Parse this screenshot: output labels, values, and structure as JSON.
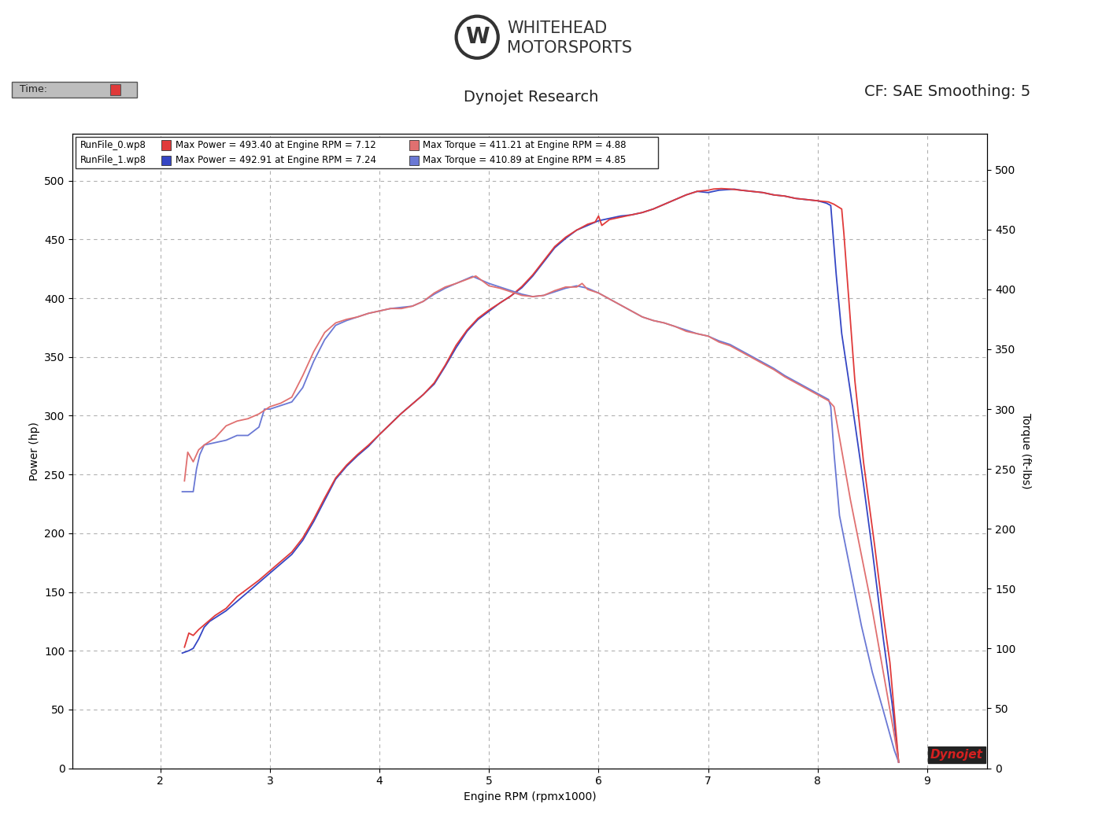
{
  "chart_data": {
    "type": "line",
    "header": {
      "logo": [
        "WHITEHEAD",
        "MOTORSPORTS"
      ],
      "time_label": "Time:",
      "title": "Dynojet Research",
      "settings": "CF: SAE Smoothing: 5"
    },
    "badge": "Dynojet",
    "x_label": "Engine RPM (rpmx1000)",
    "y_label": "Power (hp)",
    "y2_label": "Torque (ft-lbs)",
    "xlim": [
      1.2,
      9.55
    ],
    "xticks": [
      2,
      3,
      4,
      5,
      6,
      7,
      8,
      9
    ],
    "ylim": [
      0,
      540
    ],
    "yticks": [
      0,
      50,
      100,
      150,
      200,
      250,
      300,
      350,
      400,
      450,
      500
    ],
    "y2lim": [
      0,
      530
    ],
    "y2ticks": [
      0,
      50,
      100,
      150,
      200,
      250,
      300,
      350,
      400,
      450,
      500
    ],
    "grid": true,
    "runs": [
      {
        "name": "RunFile_1.wp8",
        "color": "#3546c4",
        "max_power": "Max Power = 492.91 at Engine RPM = 7.24",
        "max_torque": "Max Torque = 410.89 at Engine RPM = 4.85",
        "power": {
          "color": "#3546c4",
          "x": [
            2.2,
            2.26,
            2.3,
            2.35,
            2.4,
            2.45,
            2.5,
            2.6,
            2.7,
            2.8,
            2.9,
            3.0,
            3.1,
            3.2,
            3.3,
            3.4,
            3.5,
            3.6,
            3.7,
            3.8,
            3.9,
            4.0,
            4.1,
            4.2,
            4.3,
            4.4,
            4.5,
            4.6,
            4.7,
            4.8,
            4.9,
            5.0,
            5.1,
            5.2,
            5.3,
            5.4,
            5.5,
            5.6,
            5.7,
            5.8,
            5.9,
            6.0,
            6.1,
            6.2,
            6.3,
            6.4,
            6.5,
            6.6,
            6.7,
            6.8,
            6.9,
            7.0,
            7.1,
            7.24,
            7.3,
            7.4,
            7.5,
            7.6,
            7.7,
            7.8,
            7.9,
            8.0,
            8.08,
            8.12,
            8.17,
            8.22,
            8.3,
            8.4,
            8.5,
            8.6,
            8.68,
            8.74
          ],
          "values": [
            98,
            100,
            102,
            110,
            120,
            125,
            128,
            134,
            142,
            150,
            158,
            166,
            174,
            182,
            194,
            210,
            228,
            246,
            257,
            266,
            274,
            284,
            293,
            302,
            310,
            318,
            327,
            342,
            358,
            372,
            382,
            389,
            396,
            402,
            409,
            419,
            431,
            443,
            451,
            458,
            462,
            466,
            468,
            470,
            471,
            473,
            476,
            480,
            484,
            488,
            491,
            490,
            492,
            492.91,
            492,
            491,
            490,
            488,
            487,
            485,
            484,
            483,
            481,
            479,
            420,
            370,
            320,
            255,
            185,
            110,
            55,
            5
          ]
        },
        "torque": {
          "color": "#6a78d4",
          "axis": "y2",
          "x": [
            2.2,
            2.3,
            2.33,
            2.36,
            2.4,
            2.5,
            2.6,
            2.7,
            2.8,
            2.9,
            2.95,
            3.0,
            3.1,
            3.2,
            3.3,
            3.4,
            3.5,
            3.6,
            3.7,
            3.8,
            3.9,
            4.0,
            4.1,
            4.2,
            4.3,
            4.4,
            4.5,
            4.6,
            4.7,
            4.85,
            5.0,
            5.1,
            5.2,
            5.3,
            5.4,
            5.5,
            5.6,
            5.7,
            5.8,
            5.9,
            6.0,
            6.1,
            6.2,
            6.3,
            6.4,
            6.5,
            6.6,
            6.7,
            6.8,
            6.9,
            7.0,
            7.1,
            7.2,
            7.3,
            7.4,
            7.5,
            7.6,
            7.7,
            7.8,
            7.9,
            8.0,
            8.1,
            8.12,
            8.15,
            8.2,
            8.3,
            8.4,
            8.5,
            8.6,
            8.7,
            8.74
          ],
          "values": [
            231,
            231,
            250,
            262,
            270,
            272,
            274,
            278,
            278,
            285,
            300,
            300,
            303,
            306,
            318,
            340,
            358,
            370,
            374,
            377,
            380,
            382,
            384,
            385,
            386,
            390,
            396,
            401,
            405,
            410.89,
            405,
            402,
            399,
            396,
            394,
            395,
            398,
            401,
            403,
            401,
            397,
            392,
            387,
            382,
            377,
            374,
            372,
            369,
            366,
            363,
            361,
            357,
            354,
            349,
            344,
            339,
            334,
            328,
            323,
            318,
            313,
            308,
            302,
            263,
            211,
            165,
            119,
            80,
            48,
            15,
            5
          ]
        }
      },
      {
        "name": "RunFile_0.wp8",
        "color": "#e03a3a",
        "max_power": "Max Power = 493.40 at Engine RPM = 7.12",
        "max_torque": "Max Torque = 411.21 at Engine RPM = 4.88",
        "power": {
          "color": "#e03a3a",
          "x": [
            2.22,
            2.26,
            2.3,
            2.35,
            2.4,
            2.45,
            2.5,
            2.6,
            2.7,
            2.8,
            2.9,
            3.0,
            3.1,
            3.2,
            3.3,
            3.4,
            3.5,
            3.6,
            3.7,
            3.8,
            3.9,
            4.0,
            4.1,
            4.2,
            4.3,
            4.4,
            4.5,
            4.6,
            4.7,
            4.8,
            4.9,
            5.0,
            5.1,
            5.2,
            5.3,
            5.4,
            5.5,
            5.6,
            5.7,
            5.8,
            5.9,
            5.97,
            6.0,
            6.03,
            6.1,
            6.2,
            6.3,
            6.4,
            6.5,
            6.6,
            6.7,
            6.8,
            6.9,
            7.0,
            7.05,
            7.12,
            7.2,
            7.3,
            7.4,
            7.5,
            7.6,
            7.7,
            7.8,
            7.9,
            8.0,
            8.1,
            8.15,
            8.22,
            8.24,
            8.3,
            8.34,
            8.42,
            8.52,
            8.6,
            8.66,
            8.74
          ],
          "values": [
            103,
            115,
            113,
            118,
            122,
            126,
            130,
            136,
            146,
            153,
            160,
            168,
            176,
            184,
            196,
            212,
            230,
            247,
            258,
            267,
            275,
            284,
            293,
            302,
            310,
            318,
            328,
            343,
            360,
            373,
            383,
            390,
            396,
            402,
            410,
            420,
            432,
            444,
            452,
            458,
            463,
            465,
            470,
            462,
            467,
            469,
            471,
            473,
            476,
            480,
            484,
            488,
            491,
            492,
            493,
            493.4,
            493,
            492,
            491,
            490,
            488,
            487,
            485,
            484,
            483,
            482,
            480,
            476,
            455,
            380,
            330,
            260,
            190,
            130,
            90,
            5
          ]
        },
        "torque": {
          "color": "#e07070",
          "axis": "y2",
          "x": [
            2.22,
            2.25,
            2.3,
            2.35,
            2.4,
            2.5,
            2.6,
            2.7,
            2.8,
            2.9,
            3.0,
            3.1,
            3.2,
            3.3,
            3.4,
            3.5,
            3.6,
            3.7,
            3.8,
            3.9,
            4.0,
            4.1,
            4.2,
            4.3,
            4.4,
            4.5,
            4.6,
            4.7,
            4.88,
            5.0,
            5.1,
            5.2,
            5.3,
            5.4,
            5.5,
            5.6,
            5.7,
            5.8,
            5.85,
            5.9,
            6.0,
            6.1,
            6.2,
            6.3,
            6.4,
            6.5,
            6.6,
            6.7,
            6.8,
            6.9,
            7.0,
            7.1,
            7.2,
            7.3,
            7.4,
            7.5,
            7.6,
            7.7,
            7.8,
            7.9,
            8.0,
            8.1,
            8.15,
            8.2,
            8.3,
            8.4,
            8.5,
            8.6,
            8.7,
            8.74
          ],
          "values": [
            240,
            264,
            256,
            266,
            270,
            276,
            286,
            290,
            292,
            296,
            302,
            305,
            310,
            328,
            348,
            364,
            372,
            375,
            377,
            380,
            382,
            384,
            384,
            386,
            390,
            397,
            402,
            405,
            411.21,
            403,
            401,
            398,
            395,
            394,
            395,
            399,
            402,
            402,
            405,
            400,
            397,
            392,
            387,
            382,
            377,
            374,
            372,
            369,
            365,
            363,
            361,
            356,
            353,
            348,
            343,
            338,
            333,
            327,
            322,
            317,
            312,
            307,
            302,
            276,
            224,
            178,
            132,
            80,
            28,
            5
          ]
        }
      }
    ]
  }
}
